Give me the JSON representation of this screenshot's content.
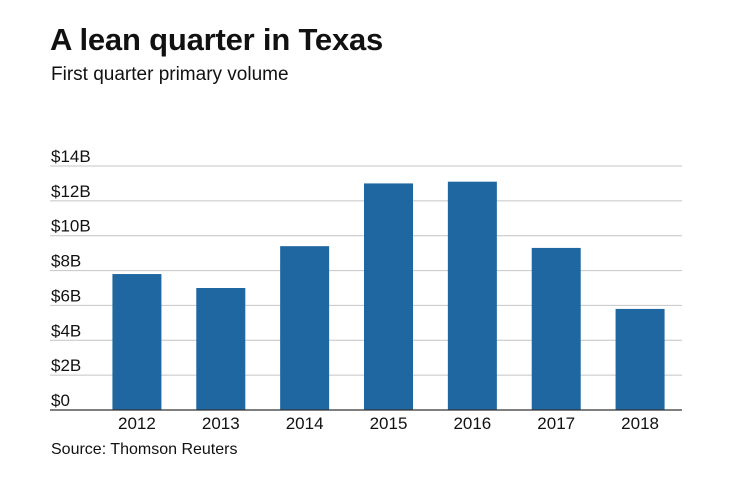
{
  "header": {
    "title": "A lean quarter in Texas",
    "subtitle": "First quarter primary volume"
  },
  "footer": {
    "source": "Source: Thomson Reuters"
  },
  "colors": {
    "bar": "#1f67a0",
    "grid": "#c4c4c4",
    "axis": "#333333"
  },
  "chart_data": {
    "type": "bar",
    "title": "A lean quarter in Texas",
    "subtitle": "First quarter primary volume",
    "xlabel": "",
    "ylabel": "",
    "categories": [
      "2012",
      "2013",
      "2014",
      "2015",
      "2016",
      "2017",
      "2018"
    ],
    "values": [
      7.8,
      7.0,
      9.4,
      13.0,
      13.1,
      9.3,
      5.8
    ],
    "unit": "$B",
    "ylim": [
      0,
      14
    ],
    "yticks": [
      0,
      2,
      4,
      6,
      8,
      10,
      12,
      14
    ],
    "ytick_labels": [
      "$0",
      "$2B",
      "$4B",
      "$6B",
      "$8B",
      "$10B",
      "$12B",
      "$14B"
    ],
    "grid": true,
    "legend": "none"
  }
}
